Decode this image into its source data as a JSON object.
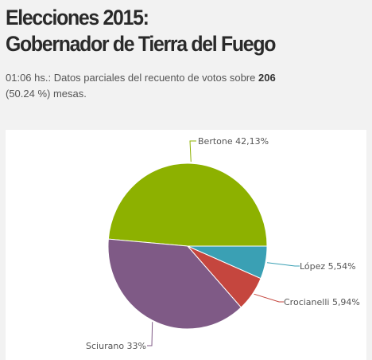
{
  "header": {
    "title_line1": "Elecciones 2015:",
    "title_line2": "Gobernador de Tierra del Fuego",
    "time": "01:06 hs.",
    "text_before": ": Datos parciales del recuento de votos sobre ",
    "mesas_count": "206",
    "text_after": " (50.24 %) mesas."
  },
  "chart_data": {
    "type": "pie",
    "slices": [
      {
        "name": "Bertone",
        "value": 42.13,
        "label": "Bertone 42,13%",
        "color": "#8db100"
      },
      {
        "name": "López",
        "value": 5.54,
        "label": "López 5,54%",
        "color": "#3aa0b4"
      },
      {
        "name": "Crocianelli",
        "value": 5.94,
        "label": "Crocianelli 5,94%",
        "color": "#c5463e"
      },
      {
        "name": "Sciurano",
        "value": 33,
        "label": "Sciurano 33%",
        "color": "#7f5a86"
      }
    ]
  }
}
